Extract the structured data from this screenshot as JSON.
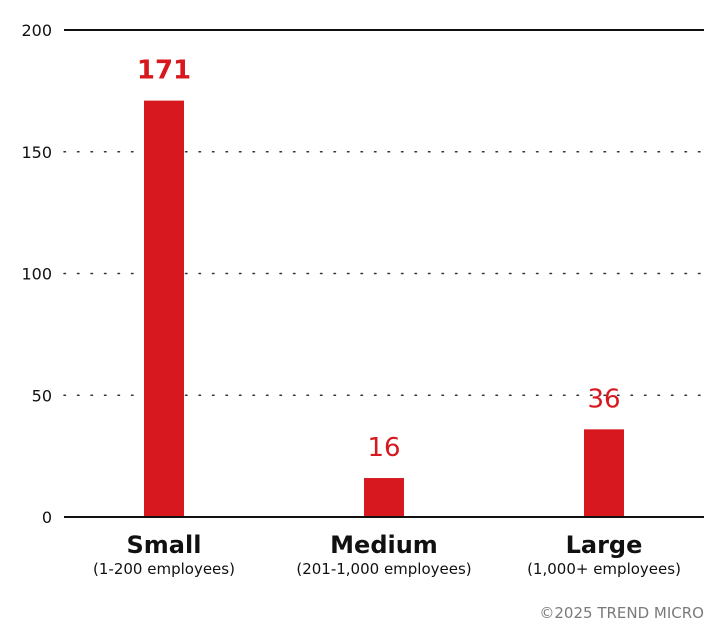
{
  "chart_data": {
    "type": "bar",
    "title": "",
    "xlabel": "",
    "ylabel": "",
    "categories": [
      "Small",
      "Medium",
      "Large"
    ],
    "category_subtitles": [
      "(1-200 employees)",
      "(201-1,000 employees)",
      "(1,000+ employees)"
    ],
    "values": [
      171,
      16,
      36
    ],
    "data_labels": [
      "171",
      "16",
      "36"
    ],
    "ylim": [
      0,
      200
    ],
    "yticks": [
      0,
      50,
      100,
      150,
      200
    ],
    "ytick_labels": [
      "0",
      "50",
      "100",
      "150",
      "200"
    ],
    "grid": "dotted horizontal",
    "bar_color": "#d7191f",
    "label_color": "#d7191f",
    "axis_color": "#111111",
    "legend": "none"
  },
  "footer": {
    "credit": "©2025 TREND MICRO"
  }
}
